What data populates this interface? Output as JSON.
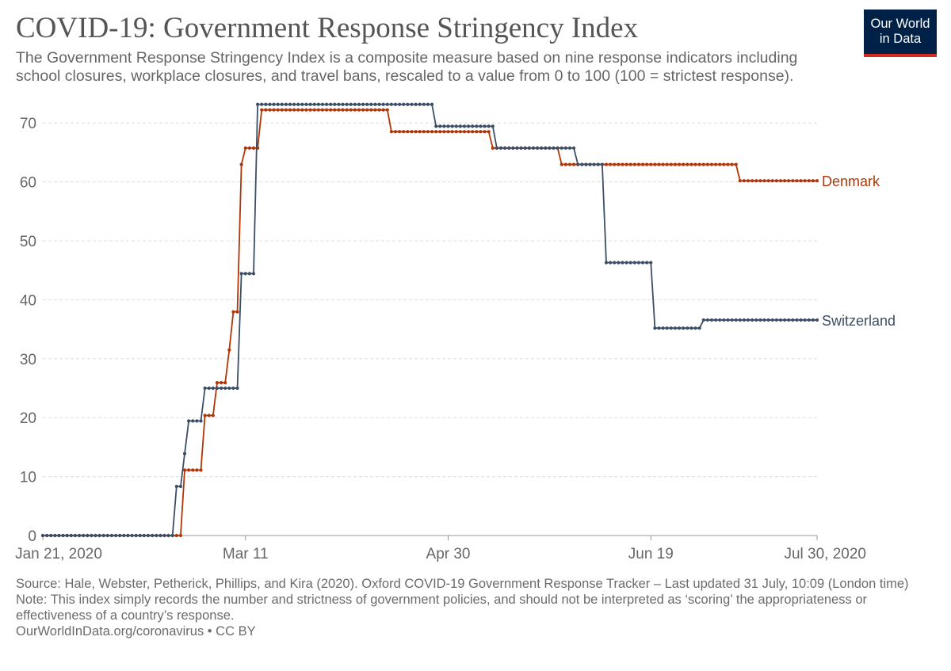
{
  "header": {
    "title": "COVID-19: Government Response Stringency Index",
    "subtitle": "The Government Response Stringency Index is a composite measure based on nine response indicators including school closures, workplace closures, and travel bans, rescaled to a value from 0 to 100 (100 = strictest response).",
    "logo_line1": "Our World",
    "logo_line2": "in Data"
  },
  "footer": {
    "source": "Source: Hale, Webster, Petherick, Phillips, and Kira (2020). Oxford COVID-19 Government Response Tracker – Last updated 31 July, 10:09 (London time)",
    "note": "Note: This index simply records the number and strictness of government policies, and should not be interpreted as ‘scoring’ the appropriateness or effectiveness of a country’s response.",
    "credit": "OurWorldInData.org/coronavirus • CC BY"
  },
  "colors": {
    "denmark": "#b13507",
    "switzerland": "#3c4e66",
    "grid": "#dddddd",
    "axis": "#999999"
  },
  "chart_data": {
    "type": "line",
    "title": "COVID-19: Government Response Stringency Index",
    "xlabel": "",
    "ylabel": "",
    "x_start": "2020-01-21",
    "x_end": "2020-07-30",
    "xlim": [
      "2020-01-21",
      "2020-07-30"
    ],
    "ylim": [
      0,
      70
    ],
    "y_ticks": [
      0,
      10,
      20,
      30,
      40,
      50,
      60,
      70
    ],
    "x_ticks": [
      {
        "date": "2020-01-21",
        "label": "Jan 21, 2020"
      },
      {
        "date": "2020-03-11",
        "label": "Mar 11"
      },
      {
        "date": "2020-04-30",
        "label": "Apr 30"
      },
      {
        "date": "2020-06-19",
        "label": "Jun 19"
      },
      {
        "date": "2020-07-30",
        "label": "Jul 30, 2020"
      }
    ],
    "grid": true,
    "legend": "end-of-line labels",
    "series": [
      {
        "name": "Denmark",
        "points": [
          [
            "2020-01-21",
            0
          ],
          [
            "2020-02-24",
            0
          ],
          [
            "2020-02-25",
            11.11
          ],
          [
            "2020-02-28",
            11.11
          ],
          [
            "2020-03-01",
            20.37
          ],
          [
            "2020-03-03",
            20.37
          ],
          [
            "2020-03-04",
            25.93
          ],
          [
            "2020-03-06",
            25.93
          ],
          [
            "2020-03-07",
            31.48
          ],
          [
            "2020-03-08",
            37.96
          ],
          [
            "2020-03-09",
            37.96
          ],
          [
            "2020-03-10",
            62.96
          ],
          [
            "2020-03-11",
            65.74
          ],
          [
            "2020-03-14",
            65.74
          ],
          [
            "2020-03-15",
            72.22
          ],
          [
            "2020-04-15",
            72.22
          ],
          [
            "2020-04-16",
            68.52
          ],
          [
            "2020-05-10",
            68.52
          ],
          [
            "2020-05-11",
            65.74
          ],
          [
            "2020-05-27",
            65.74
          ],
          [
            "2020-05-28",
            62.96
          ],
          [
            "2020-07-10",
            62.96
          ],
          [
            "2020-07-11",
            60.19
          ],
          [
            "2020-07-30",
            60.19
          ]
        ]
      },
      {
        "name": "Switzerland",
        "points": [
          [
            "2020-01-21",
            0
          ],
          [
            "2020-02-22",
            0
          ],
          [
            "2020-02-23",
            8.33
          ],
          [
            "2020-02-24",
            8.33
          ],
          [
            "2020-02-25",
            13.89
          ],
          [
            "2020-02-26",
            19.44
          ],
          [
            "2020-02-29",
            19.44
          ],
          [
            "2020-03-01",
            25
          ],
          [
            "2020-03-09",
            25
          ],
          [
            "2020-03-10",
            44.44
          ],
          [
            "2020-03-13",
            44.44
          ],
          [
            "2020-03-14",
            73.15
          ],
          [
            "2020-04-26",
            73.15
          ],
          [
            "2020-04-27",
            69.44
          ],
          [
            "2020-05-11",
            69.44
          ],
          [
            "2020-05-12",
            65.74
          ],
          [
            "2020-05-31",
            65.74
          ],
          [
            "2020-06-01",
            62.96
          ],
          [
            "2020-06-07",
            62.96
          ],
          [
            "2020-06-08",
            46.3
          ],
          [
            "2020-06-19",
            46.3
          ],
          [
            "2020-06-20",
            35.19
          ],
          [
            "2020-07-01",
            35.19
          ],
          [
            "2020-07-02",
            36.57
          ],
          [
            "2020-07-30",
            36.57
          ]
        ]
      }
    ]
  }
}
